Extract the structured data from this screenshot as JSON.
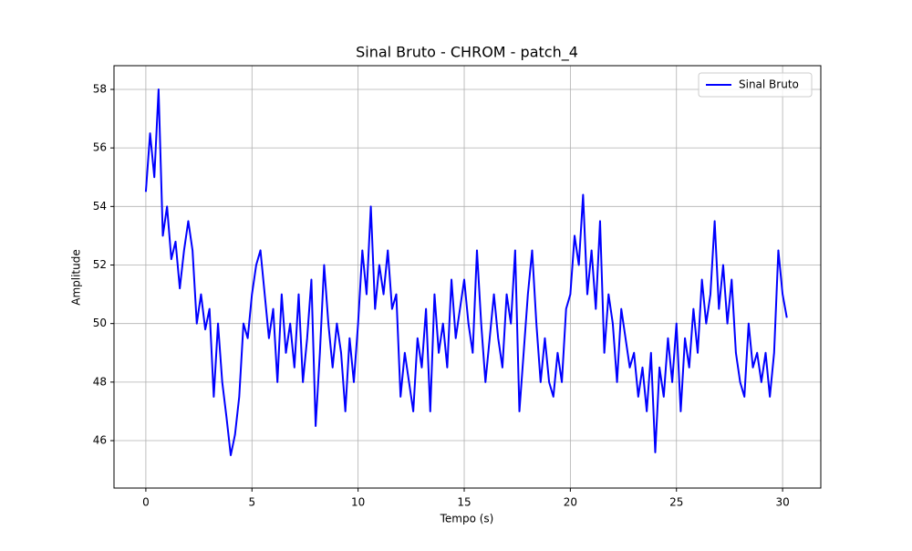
{
  "chart_data": {
    "type": "line",
    "title": "Sinal Bruto - CHROM - patch_4",
    "xlabel": "Tempo (s)",
    "ylabel": "Amplitude",
    "x": [
      0,
      0.2,
      0.4,
      0.6,
      0.8,
      1,
      1.2,
      1.4,
      1.6,
      1.8,
      2,
      2.2,
      2.4,
      2.6,
      2.8,
      3,
      3.2,
      3.4,
      3.6,
      3.8,
      4,
      4.2,
      4.4,
      4.6,
      4.8,
      5,
      5.2,
      5.4,
      5.6,
      5.8,
      6,
      6.2,
      6.4,
      6.6,
      6.8,
      7,
      7.2,
      7.4,
      7.6,
      7.8,
      8,
      8.2,
      8.4,
      8.6,
      8.8,
      9,
      9.2,
      9.4,
      9.6,
      9.8,
      10,
      10.2,
      10.4,
      10.6,
      10.8,
      11,
      11.2,
      11.4,
      11.6,
      11.8,
      12,
      12.2,
      12.4,
      12.6,
      12.8,
      13,
      13.2,
      13.4,
      13.6,
      13.8,
      14,
      14.2,
      14.4,
      14.6,
      14.8,
      15,
      15.2,
      15.4,
      15.6,
      15.8,
      16,
      16.2,
      16.4,
      16.6,
      16.8,
      17,
      17.2,
      17.4,
      17.6,
      17.8,
      18,
      18.2,
      18.4,
      18.6,
      18.8,
      19,
      19.2,
      19.4,
      19.6,
      19.8,
      20,
      20.2,
      20.4,
      20.6,
      20.8,
      21,
      21.2,
      21.4,
      21.6,
      21.8,
      22,
      22.2,
      22.4,
      22.6,
      22.8,
      23,
      23.2,
      23.4,
      23.6,
      23.8,
      24,
      24.2,
      24.4,
      24.6,
      24.8,
      25,
      25.2,
      25.4,
      25.6,
      25.8,
      26,
      26.2,
      26.4,
      26.6,
      26.8,
      27,
      27.2,
      27.4,
      27.6,
      27.8,
      28,
      28.2,
      28.4,
      28.6,
      28.8,
      29,
      29.2,
      29.4,
      29.6,
      29.8,
      30,
      30.2
    ],
    "series": [
      {
        "name": "Sinal Bruto",
        "color": "#0000ff",
        "values": [
          54.5,
          56.5,
          55,
          58,
          53,
          54,
          52.2,
          52.8,
          51.2,
          52.5,
          53.5,
          52.5,
          50,
          51,
          49.8,
          50.5,
          47.5,
          50,
          48,
          46.8,
          45.5,
          46.2,
          47.5,
          50,
          49.5,
          51,
          52,
          52.5,
          51,
          49.5,
          50.5,
          48,
          51,
          49,
          50,
          48.5,
          51,
          48,
          49.5,
          51.5,
          46.5,
          49,
          52,
          50,
          48.5,
          50,
          49,
          47,
          49.5,
          48,
          50,
          52.5,
          51,
          54,
          50.5,
          52,
          51,
          52.5,
          50.5,
          51,
          47.5,
          49,
          48,
          47,
          49.5,
          48.5,
          50.5,
          47,
          51,
          49,
          50,
          48.5,
          51.5,
          49.5,
          50.5,
          51.5,
          50,
          49,
          52.5,
          50,
          48,
          49.5,
          51,
          49.5,
          48.5,
          51,
          50,
          52.5,
          47,
          49,
          51,
          52.5,
          50,
          48,
          49.5,
          48,
          47.5,
          49,
          48,
          50.5,
          51,
          53,
          52,
          54.4,
          51,
          52.5,
          50.5,
          53.5,
          49,
          51,
          50,
          48,
          50.5,
          49.5,
          48.5,
          49,
          47.5,
          48.5,
          47,
          49,
          45.6,
          48.5,
          47.5,
          49.5,
          48,
          50,
          47,
          49.5,
          48.5,
          50.5,
          49,
          51.5,
          50,
          51,
          53.5,
          50.5,
          52,
          50,
          51.5,
          49,
          48,
          47.5,
          50,
          48.5,
          49,
          48,
          49,
          47.5,
          49,
          52.5,
          51,
          50.2
        ]
      }
    ],
    "xlim": [
      -1.5,
      31.8
    ],
    "ylim": [
      44.38,
      58.81
    ],
    "xticks": [
      0,
      5,
      10,
      15,
      20,
      25,
      30
    ],
    "yticks": [
      46,
      48,
      50,
      52,
      54,
      56,
      58
    ],
    "grid": true,
    "legend": "upper right"
  }
}
